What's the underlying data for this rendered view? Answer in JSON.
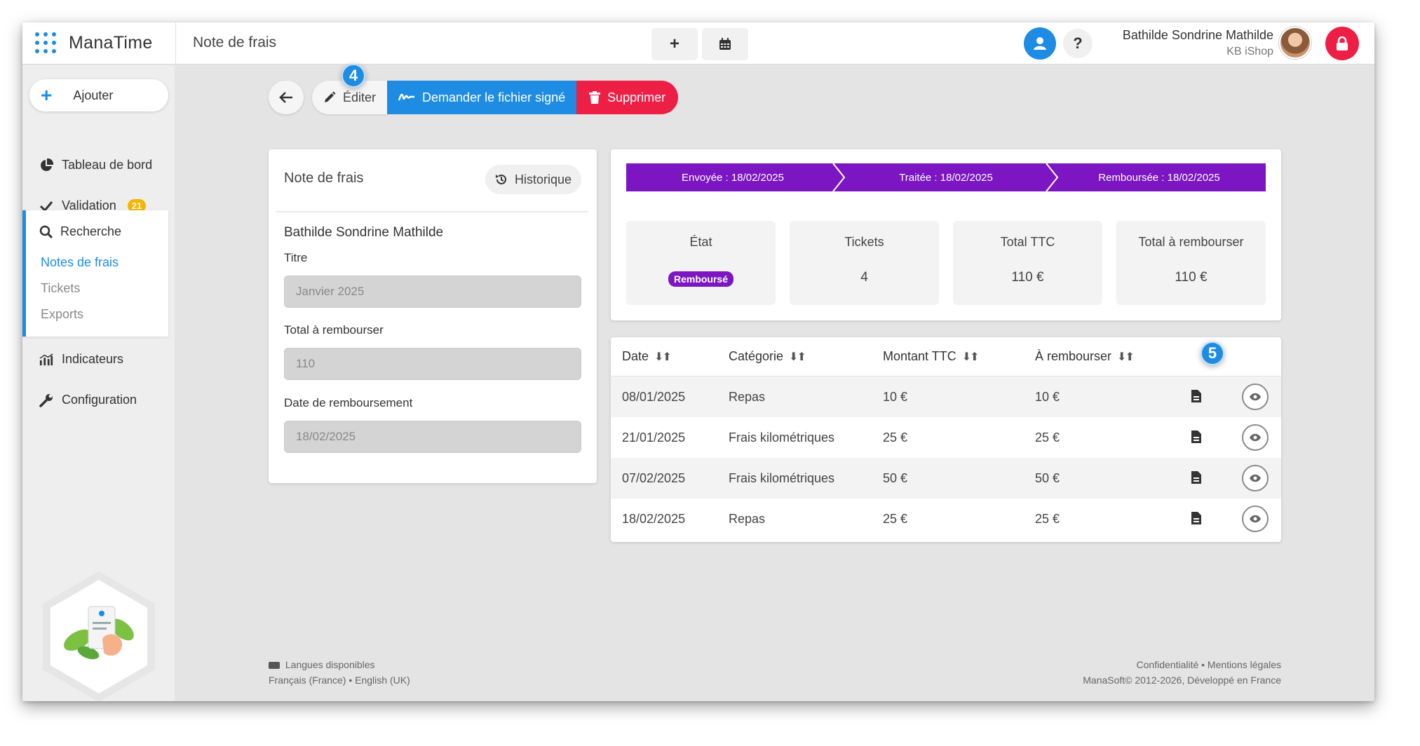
{
  "header": {
    "brand": "ManaTime",
    "page_title": "Note de frais",
    "user_name": "Bathilde Sondrine Mathilde",
    "user_company": "KB iShop"
  },
  "sidebar": {
    "add_label": "Ajouter",
    "dashboard": "Tableau de bord",
    "validation": "Validation",
    "validation_count": "21",
    "search": "Recherche",
    "search_items": [
      "Notes de frais",
      "Tickets",
      "Exports"
    ],
    "indicators": "Indicateurs",
    "configuration": "Configuration"
  },
  "toolbar": {
    "edit": "Éditer",
    "request_signed": "Demander le fichier signé",
    "delete": "Supprimer",
    "marker_edit": "4",
    "marker_table": "5"
  },
  "expense": {
    "card_title": "Note de frais",
    "history": "Historique",
    "person": "Bathilde Sondrine Mathilde",
    "title_label": "Titre",
    "title_value": "Janvier 2025",
    "total_label": "Total à rembourser",
    "total_value": "110",
    "date_label": "Date de remboursement",
    "date_value": "18/02/2025"
  },
  "steps": [
    "Envoyée : 18/02/2025",
    "Traitée : 18/02/2025",
    "Remboursée : 18/02/2025"
  ],
  "stats": {
    "state_label": "État",
    "state_value": "Remboursé",
    "tickets_label": "Tickets",
    "tickets_value": "4",
    "total_ttc_label": "Total TTC",
    "total_ttc_value": "110 €",
    "to_refund_label": "Total à rembourser",
    "to_refund_value": "110 €"
  },
  "table": {
    "columns": [
      "Date",
      "Catégorie",
      "Montant TTC",
      "À rembourser"
    ],
    "rows": [
      {
        "date": "08/01/2025",
        "category": "Repas",
        "amount": "10 €",
        "refund": "10 €"
      },
      {
        "date": "21/01/2025",
        "category": "Frais kilométriques",
        "amount": "25 €",
        "refund": "25 €"
      },
      {
        "date": "07/02/2025",
        "category": "Frais kilométriques",
        "amount": "50 €",
        "refund": "50 €"
      },
      {
        "date": "18/02/2025",
        "category": "Repas",
        "amount": "25 €",
        "refund": "25 €"
      }
    ]
  },
  "footer": {
    "languages_title": "Langues disponibles",
    "languages": "Français (France) • English (UK)",
    "legal": "Confidentialité • Mentions légales",
    "copyright": "ManaSoft© 2012-2026, Développé en France"
  },
  "colors": {
    "accent": "#1e8ce3",
    "danger": "#ee1f44",
    "purple": "#7b16c2"
  }
}
